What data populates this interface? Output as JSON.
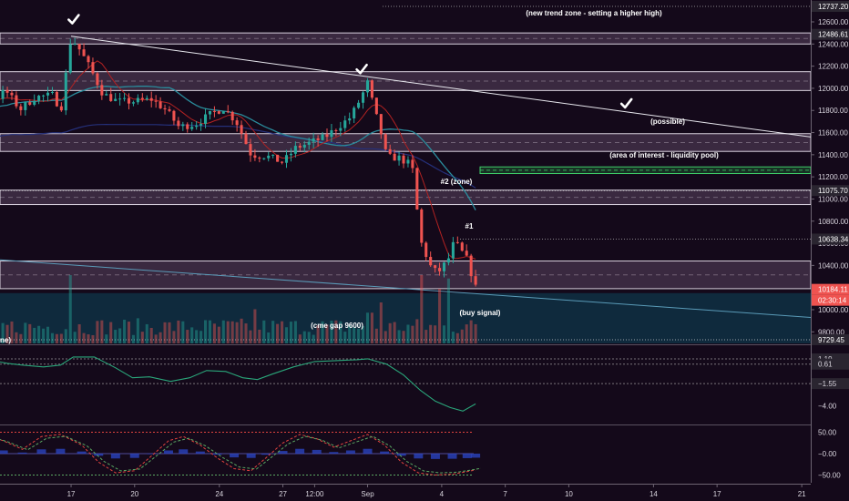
{
  "chart_data": [
    {
      "type": "candlestick",
      "pane": "price",
      "ylim": [
        9600,
        12800
      ],
      "price_ticks": [
        12600,
        12400,
        12200,
        12000,
        11800,
        11600,
        11400,
        11200,
        11000,
        10800,
        10600,
        10400,
        10000,
        9800
      ],
      "price_labels": {
        "top": "12737.20",
        "resistance": "12486.61",
        "mid": "11075.70",
        "last_high": "10638.34",
        "last_price": "10184.11",
        "countdown": "02:30:14",
        "low": "9729.45"
      },
      "x_ticks": [
        {
          "label": "17",
          "x": 0.5
        },
        {
          "label": "20",
          "x": 3.5
        },
        {
          "label": "24",
          "x": 7.5
        },
        {
          "label": "27",
          "x": 10.5
        },
        {
          "label": "12:00",
          "x": 12.0
        },
        {
          "label": "Sep",
          "x": 14.5
        },
        {
          "label": "4",
          "x": 18.0
        },
        {
          "label": "7",
          "x": 21.0
        },
        {
          "label": "10",
          "x": 24.0
        },
        {
          "label": "14",
          "x": 28.0
        },
        {
          "label": "17",
          "x": 31.0
        },
        {
          "label": "21",
          "x": 35.0
        }
      ],
      "x_range": [
        -7.4,
        36.1
      ],
      "zones": [
        {
          "from": 12400,
          "to": 12500
        },
        {
          "from": 11980,
          "to": 12150
        },
        {
          "from": 11430,
          "to": 11590
        },
        {
          "from": 10950,
          "to": 11080
        },
        {
          "from": 10190,
          "to": 10440
        }
      ],
      "green_zone": {
        "from": 11230,
        "to": 11290
      },
      "annotations": [
        "(new trend zone - setting a higher high)",
        "(possible)",
        "(area of interest - liquidity pool)",
        "#2 (zone)",
        "#1",
        "(buy signal)",
        "(cme gap 9600)",
        "ne)"
      ],
      "checkmarks": [
        {
          "x": 0.6,
          "price": 12620
        },
        {
          "x": 14.2,
          "price": 12170
        },
        {
          "x": 26.7,
          "price": 11860
        }
      ],
      "keypoints": [
        [
          -7.4,
          11650
        ],
        [
          -6.6,
          11780
        ],
        [
          -5.7,
          11900
        ],
        [
          -5.0,
          11790
        ],
        [
          -4.2,
          11940
        ],
        [
          -3.3,
          11860
        ],
        [
          -2.6,
          11980
        ],
        [
          -1.9,
          11810
        ],
        [
          -1.2,
          11920
        ],
        [
          -0.3,
          11940
        ],
        [
          0.0,
          11780
        ],
        [
          0.5,
          12460
        ],
        [
          0.9,
          12350
        ],
        [
          1.4,
          12180
        ],
        [
          2.0,
          11950
        ],
        [
          2.7,
          11880
        ],
        [
          3.4,
          11880
        ],
        [
          4.3,
          11900
        ],
        [
          5.0,
          11800
        ],
        [
          5.6,
          11650
        ],
        [
          6.4,
          11680
        ],
        [
          7.2,
          11780
        ],
        [
          7.7,
          11820
        ],
        [
          8.3,
          11700
        ],
        [
          9.0,
          11400
        ],
        [
          9.7,
          11390
        ],
        [
          10.5,
          11330
        ],
        [
          11.1,
          11460
        ],
        [
          11.8,
          11510
        ],
        [
          12.5,
          11560
        ],
        [
          13.1,
          11650
        ],
        [
          13.7,
          11740
        ],
        [
          14.2,
          11920
        ],
        [
          14.5,
          12050
        ],
        [
          14.8,
          11820
        ],
        [
          15.1,
          11620
        ],
        [
          15.4,
          11380
        ],
        [
          16.0,
          11370
        ],
        [
          16.6,
          11300
        ],
        [
          17.0,
          10620
        ],
        [
          17.5,
          10380
        ],
        [
          17.8,
          10330
        ],
        [
          18.3,
          10450
        ],
        [
          18.6,
          10620
        ],
        [
          19.2,
          10450
        ],
        [
          19.6,
          10200
        ]
      ],
      "volume_peaks": [
        {
          "x": 0.5,
          "v": 1.0
        },
        {
          "x": 17.0,
          "v": 1.0
        },
        {
          "x": 17.9,
          "v": 0.8
        },
        {
          "x": 18.4,
          "v": 0.95
        },
        {
          "x": 9.2,
          "v": 0.5
        },
        {
          "x": 14.6,
          "v": 0.45
        },
        {
          "x": 15.1,
          "v": 0.6
        }
      ]
    },
    {
      "type": "line",
      "pane": "oscillator",
      "y_ticks": [
        "1.19",
        "0.61",
        "−1.55",
        "−4.00"
      ],
      "ylim": [
        -5.2,
        2.4
      ],
      "points": [
        [
          -7.4,
          0.2
        ],
        [
          -6.8,
          -0.8
        ],
        [
          -6.0,
          -1.2
        ],
        [
          -5.0,
          -0.4
        ],
        [
          -4.0,
          0.7
        ],
        [
          -3.2,
          1.0
        ],
        [
          -2.5,
          0.7
        ],
        [
          -1.8,
          0.5
        ],
        [
          -0.8,
          0.3
        ],
        [
          0.0,
          0.5
        ],
        [
          0.6,
          1.4
        ],
        [
          1.6,
          1.4
        ],
        [
          2.6,
          0.2
        ],
        [
          3.4,
          -0.9
        ],
        [
          4.2,
          -0.8
        ],
        [
          5.2,
          -1.3
        ],
        [
          6.1,
          -0.9
        ],
        [
          6.9,
          -0.1
        ],
        [
          7.8,
          -0.2
        ],
        [
          8.6,
          -0.9
        ],
        [
          9.3,
          -1.1
        ],
        [
          10.0,
          -0.5
        ],
        [
          11.0,
          0.3
        ],
        [
          12.0,
          0.9
        ],
        [
          13.0,
          1.0
        ],
        [
          14.0,
          1.1
        ],
        [
          14.5,
          1.2
        ],
        [
          15.4,
          0.6
        ],
        [
          16.2,
          -0.6
        ],
        [
          17.0,
          -2.3
        ],
        [
          17.7,
          -3.5
        ],
        [
          18.4,
          -4.2
        ],
        [
          19.0,
          -4.6
        ],
        [
          19.6,
          -3.8
        ]
      ]
    },
    {
      "type": "line",
      "pane": "stochastic",
      "y_ticks": [
        "50.00",
        "−0.00",
        "−50.00"
      ],
      "ylim": [
        -60,
        65
      ],
      "band": [
        50,
        -50
      ],
      "points": [
        [
          -7.4,
          -30
        ],
        [
          -6.5,
          -10
        ],
        [
          -5.5,
          20
        ],
        [
          -4.5,
          40
        ],
        [
          -3.6,
          45
        ],
        [
          -2.7,
          30
        ],
        [
          -1.8,
          10
        ],
        [
          -0.9,
          40
        ],
        [
          0.0,
          45
        ],
        [
          1.0,
          20
        ],
        [
          1.8,
          -20
        ],
        [
          2.6,
          -45
        ],
        [
          3.5,
          -40
        ],
        [
          4.3,
          -5
        ],
        [
          5.1,
          30
        ],
        [
          5.8,
          40
        ],
        [
          6.6,
          20
        ],
        [
          7.4,
          -10
        ],
        [
          8.2,
          -35
        ],
        [
          9.0,
          -40
        ],
        [
          9.7,
          -10
        ],
        [
          10.5,
          25
        ],
        [
          11.3,
          45
        ],
        [
          12.1,
          35
        ],
        [
          12.9,
          15
        ],
        [
          13.7,
          30
        ],
        [
          14.5,
          45
        ],
        [
          15.3,
          20
        ],
        [
          16.1,
          -20
        ],
        [
          16.9,
          -45
        ],
        [
          17.7,
          -50
        ],
        [
          18.5,
          -48
        ],
        [
          19.2,
          -42
        ],
        [
          19.6,
          -38
        ]
      ]
    }
  ],
  "colors": {
    "background": "#14091a",
    "up": "#26a69a",
    "down": "#ef5350",
    "zone_fill": "#8a6a8e",
    "zone_line": "#d9d1de",
    "blue_region": "#0f2a3d",
    "ma_red": "#b22222",
    "ma_teal": "#2a8c9c",
    "ma_navy": "#25307a",
    "osc_line": "#2aa67a",
    "stoch_red": "#e0433f",
    "stoch_green": "#5aa862",
    "stoch_blue": "#2b47c9",
    "axis_text": "#d8d4dd",
    "label_bg": "#2a2530",
    "last_price_bg": "#ef5350",
    "annotation": "#ffffff"
  }
}
